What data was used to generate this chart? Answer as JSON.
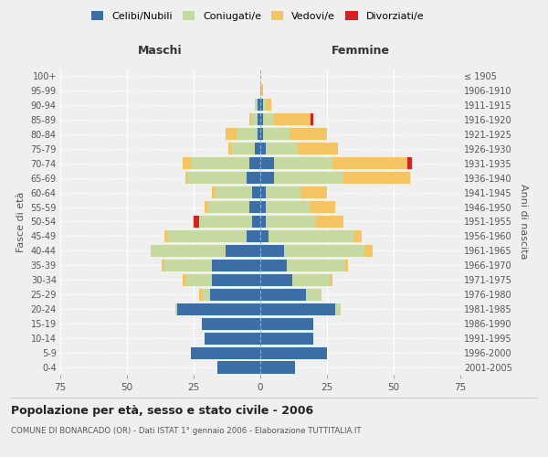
{
  "age_groups": [
    "0-4",
    "5-9",
    "10-14",
    "15-19",
    "20-24",
    "25-29",
    "30-34",
    "35-39",
    "40-44",
    "45-49",
    "50-54",
    "55-59",
    "60-64",
    "65-69",
    "70-74",
    "75-79",
    "80-84",
    "85-89",
    "90-94",
    "95-99",
    "100+"
  ],
  "birth_years": [
    "2001-2005",
    "1996-2000",
    "1991-1995",
    "1986-1990",
    "1981-1985",
    "1976-1980",
    "1971-1975",
    "1966-1970",
    "1961-1965",
    "1956-1960",
    "1951-1955",
    "1946-1950",
    "1941-1945",
    "1936-1940",
    "1931-1935",
    "1926-1930",
    "1921-1925",
    "1916-1920",
    "1911-1915",
    "1906-1910",
    "≤ 1905"
  ],
  "colors": {
    "celibi": "#3a6ea5",
    "coniugati": "#c5d9a0",
    "vedovi": "#f5c462",
    "divorziati": "#d42020"
  },
  "maschi": {
    "celibi": [
      16,
      26,
      21,
      22,
      31,
      19,
      18,
      18,
      13,
      5,
      3,
      4,
      3,
      5,
      4,
      2,
      1,
      1,
      1,
      0,
      0
    ],
    "coniugati": [
      0,
      0,
      0,
      0,
      1,
      3,
      10,
      18,
      28,
      30,
      20,
      16,
      14,
      22,
      22,
      9,
      8,
      2,
      1,
      0,
      0
    ],
    "vedovi": [
      0,
      0,
      0,
      0,
      0,
      1,
      1,
      1,
      0,
      1,
      0,
      1,
      1,
      1,
      3,
      1,
      4,
      1,
      0,
      0,
      0
    ],
    "divorziati": [
      0,
      0,
      0,
      0,
      0,
      0,
      0,
      0,
      0,
      0,
      2,
      0,
      0,
      0,
      0,
      0,
      0,
      0,
      0,
      0,
      0
    ]
  },
  "femmine": {
    "celibi": [
      13,
      25,
      20,
      20,
      28,
      17,
      12,
      10,
      9,
      3,
      2,
      2,
      2,
      5,
      5,
      2,
      1,
      1,
      1,
      0,
      0
    ],
    "coniugati": [
      0,
      0,
      0,
      0,
      2,
      6,
      14,
      22,
      30,
      32,
      19,
      17,
      13,
      26,
      22,
      12,
      10,
      4,
      1,
      0,
      0
    ],
    "vedovi": [
      0,
      0,
      0,
      0,
      0,
      0,
      1,
      1,
      3,
      3,
      10,
      9,
      10,
      25,
      28,
      15,
      14,
      14,
      2,
      1,
      0
    ],
    "divorziati": [
      0,
      0,
      0,
      0,
      0,
      0,
      0,
      0,
      0,
      0,
      0,
      0,
      0,
      0,
      2,
      0,
      0,
      1,
      0,
      0,
      0
    ]
  },
  "xlim": 75,
  "title": "Popolazione per età, sesso e stato civile - 2006",
  "subtitle": "COMUNE DI BONARCADO (OR) - Dati ISTAT 1° gennaio 2006 - Elaborazione TUTTITALIA.IT",
  "xlabel_left": "Maschi",
  "xlabel_right": "Femmine",
  "ylabel_left": "Fasce di età",
  "ylabel_right": "Anni di nascita",
  "legend_labels": [
    "Celibi/Nubili",
    "Coniugati/e",
    "Vedovi/e",
    "Divorziati/e"
  ],
  "background_color": "#efefef"
}
